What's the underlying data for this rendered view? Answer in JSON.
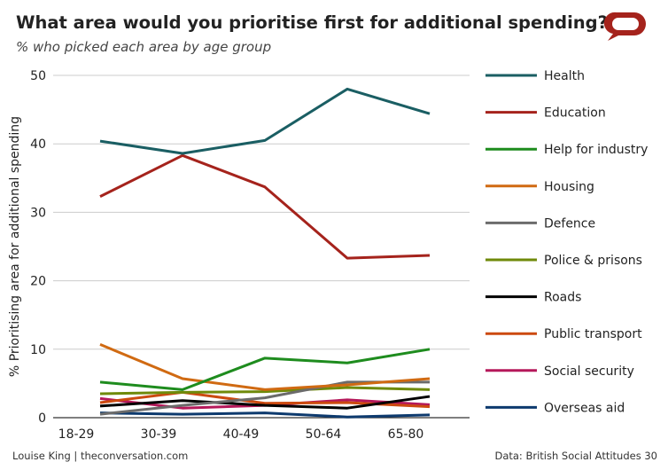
{
  "chart_data": {
    "type": "line",
    "title": "What area would you prioritise first for additional spending?",
    "subtitle": "% who picked each area by age group",
    "ylabel": "% Prioritising area for additional spending",
    "xlabel": "",
    "categories": [
      "18-29",
      "30-39",
      "40-49",
      "50-64",
      "65-80"
    ],
    "ylim": [
      0,
      50
    ],
    "yticks": [
      0,
      10,
      20,
      30,
      40,
      50
    ],
    "grid": true,
    "legend": "right",
    "series": [
      {
        "name": "Health",
        "color": "#1a5e63",
        "values": [
          40.4,
          38.6,
          40.5,
          48.0,
          44.4
        ]
      },
      {
        "name": "Education",
        "color": "#a5231c",
        "values": [
          32.3,
          38.3,
          33.7,
          23.3,
          23.7
        ]
      },
      {
        "name": "Help for industry",
        "color": "#1e8c1e",
        "values": [
          5.2,
          4.1,
          8.7,
          8.0,
          10.0
        ]
      },
      {
        "name": "Housing",
        "color": "#d06a12",
        "values": [
          10.7,
          5.7,
          4.1,
          4.8,
          5.7
        ]
      },
      {
        "name": "Defence",
        "color": "#6b6b6b",
        "values": [
          0.5,
          1.8,
          2.9,
          5.2,
          5.2
        ]
      },
      {
        "name": "Police & prisons",
        "color": "#6f8a0a",
        "values": [
          3.5,
          3.7,
          3.8,
          4.4,
          4.1
        ]
      },
      {
        "name": "Roads",
        "color": "#000000",
        "values": [
          1.7,
          2.5,
          1.8,
          1.4,
          3.1
        ]
      },
      {
        "name": "Public transport",
        "color": "#cc4a10",
        "values": [
          2.2,
          3.7,
          2.1,
          2.2,
          1.6
        ]
      },
      {
        "name": "Social security",
        "color": "#b5185a",
        "values": [
          2.8,
          1.4,
          1.8,
          2.6,
          1.9
        ]
      },
      {
        "name": "Overseas aid",
        "color": "#0d3a6e",
        "values": [
          0.7,
          0.5,
          0.7,
          0.1,
          0.4
        ]
      }
    ]
  },
  "footer": {
    "author": "Louise King | theconversation.com",
    "source": "Data: British Social Attitudes 30"
  },
  "logo": {
    "name": "the-conversation-logo",
    "color": "#a5231c"
  }
}
